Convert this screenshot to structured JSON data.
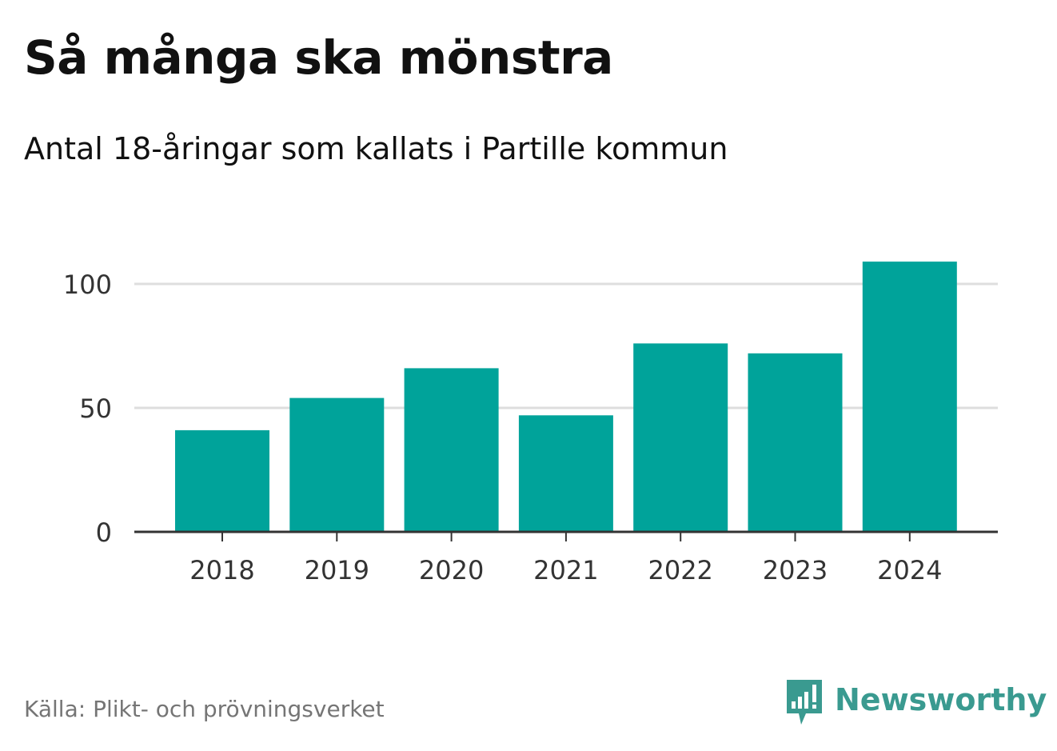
{
  "title": "Så många ska mönstra",
  "subtitle": "Antal 18-åringar som kallats i Partille kommun",
  "source": "Källa: Plikt- och prövningsverket",
  "brand": {
    "name": "Newsworthy",
    "icon": "newsworthy-logo-icon"
  },
  "colors": {
    "bar": "#00a39a",
    "gridline": "#dedede",
    "axis": "#333333",
    "brand": "#3a9a90"
  },
  "chart_data": {
    "type": "bar",
    "categories": [
      "2018",
      "2019",
      "2020",
      "2021",
      "2022",
      "2023",
      "2024"
    ],
    "values": [
      41,
      54,
      66,
      47,
      76,
      72,
      109
    ],
    "yticks": [
      0,
      50,
      100
    ],
    "ytick_labels": [
      "0",
      "50",
      "100"
    ],
    "ylim": [
      0,
      115
    ],
    "grid": true,
    "xlabel": "",
    "ylabel": "",
    "title": "Så många ska mönstra"
  }
}
